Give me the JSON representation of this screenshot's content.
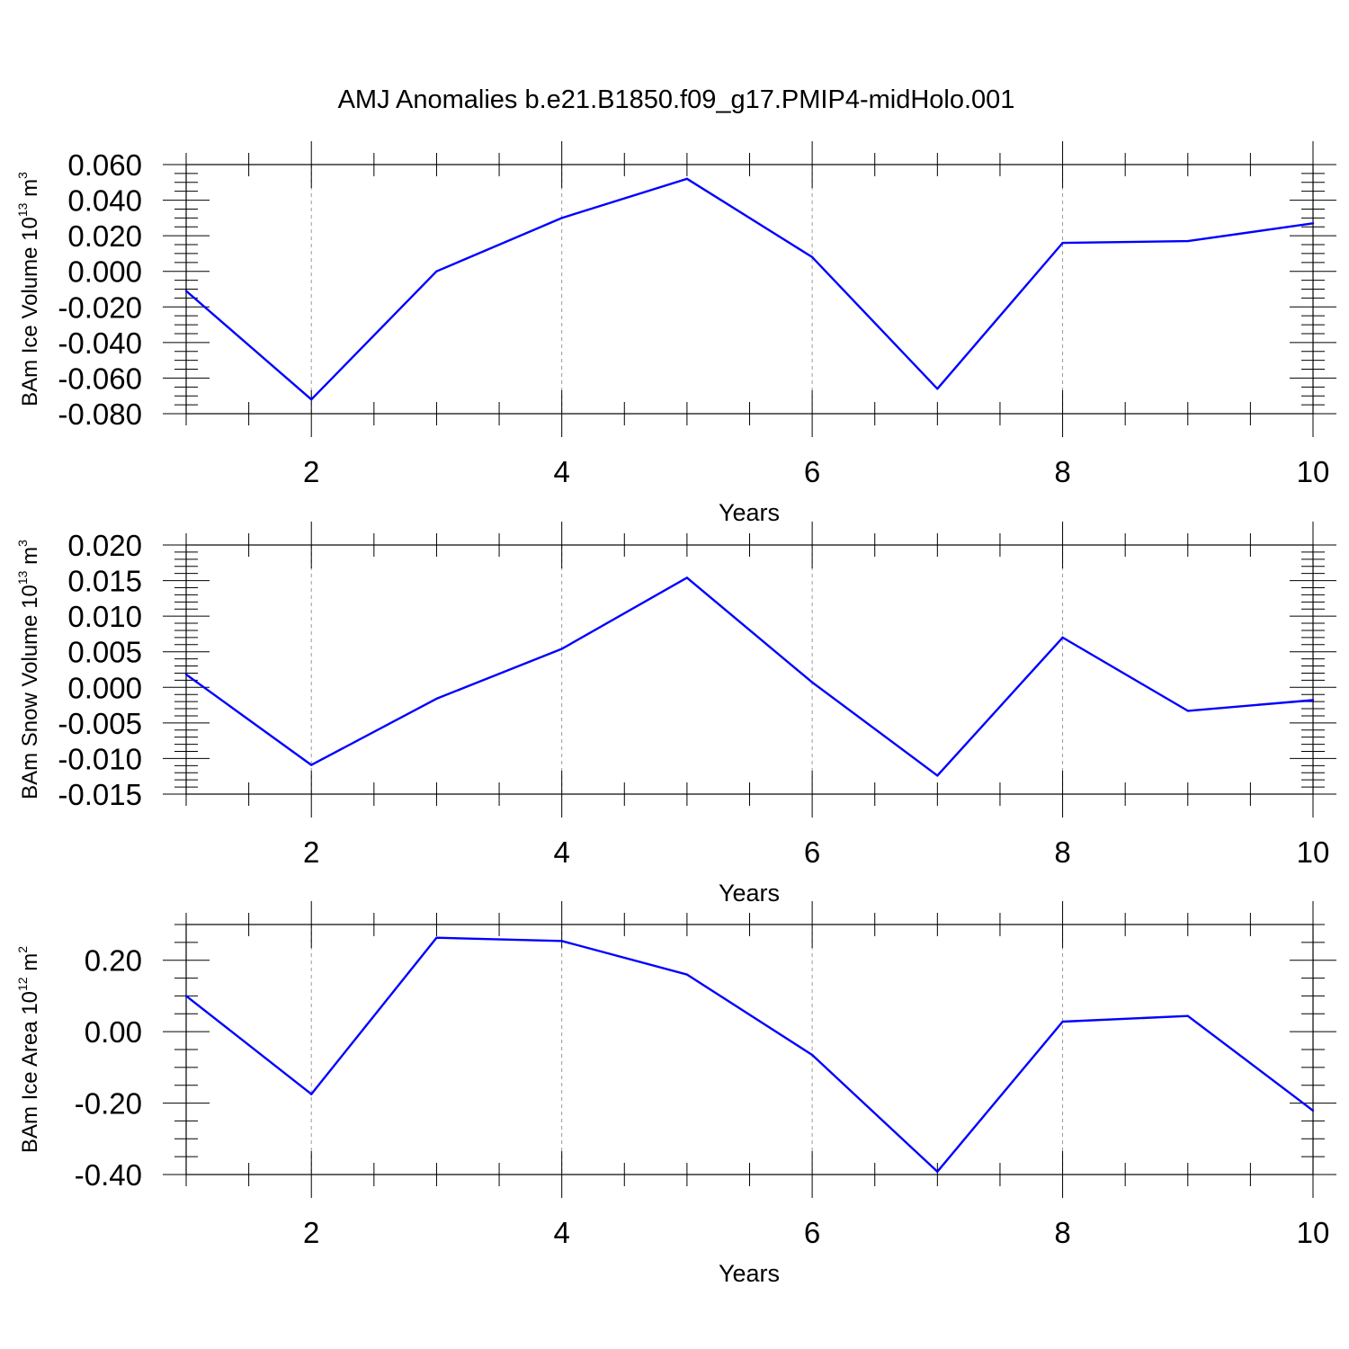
{
  "title": "AMJ Anomalies b.e21.B1850.f09_g17.PMIP4-midHolo.001",
  "chart_data": [
    {
      "type": "line",
      "xlabel": "Years",
      "ylabel": {
        "prefix": "BAm Ice Volume 10",
        "exp": "13",
        "unit": " m",
        "unit_exp": "3"
      },
      "xlim": [
        1,
        10
      ],
      "ylim": [
        -0.08,
        0.06
      ],
      "x_ticks": [
        2,
        4,
        6,
        8,
        10
      ],
      "x_tick_labels": [
        "2",
        "4",
        "6",
        "8",
        "10"
      ],
      "y_ticks": [
        -0.08,
        -0.06,
        -0.04,
        -0.02,
        0.0,
        0.02,
        0.04,
        0.06
      ],
      "y_tick_labels": [
        "-0.080",
        "-0.060",
        "-0.040",
        "-0.020",
        "0.000",
        "0.020",
        "0.040",
        "0.060"
      ],
      "y_minor_step": 0.005,
      "grid": "vertical dashed at major x ticks",
      "color": "#0000ff",
      "x": [
        1,
        2,
        3,
        4,
        5,
        6,
        7,
        8,
        9,
        10
      ],
      "values": [
        -0.011,
        -0.072,
        0.0,
        0.03,
        0.052,
        0.008,
        -0.066,
        0.016,
        0.017,
        0.027
      ]
    },
    {
      "type": "line",
      "xlabel": "Years",
      "ylabel": {
        "prefix": "BAm Snow Volume 10",
        "exp": "13",
        "unit": " m",
        "unit_exp": "3"
      },
      "xlim": [
        1,
        10
      ],
      "ylim": [
        -0.015,
        0.02
      ],
      "x_ticks": [
        2,
        4,
        6,
        8,
        10
      ],
      "x_tick_labels": [
        "2",
        "4",
        "6",
        "8",
        "10"
      ],
      "y_ticks": [
        -0.015,
        -0.01,
        -0.005,
        0.0,
        0.005,
        0.01,
        0.015,
        0.02
      ],
      "y_tick_labels": [
        "-0.015",
        "-0.010",
        "-0.005",
        "0.000",
        "0.005",
        "0.010",
        "0.015",
        "0.020"
      ],
      "y_minor_step": 0.001,
      "grid": "vertical dashed at major x ticks",
      "color": "#0000ff",
      "x": [
        1,
        2,
        3,
        4,
        5,
        6,
        7,
        8,
        9,
        10
      ],
      "values": [
        0.0018,
        -0.0109,
        -0.0016,
        0.0054,
        0.0154,
        0.0007,
        -0.0124,
        0.007,
        -0.0033,
        -0.0018
      ]
    },
    {
      "type": "line",
      "xlabel": "Years",
      "ylabel": {
        "prefix": "BAm Ice Area 10",
        "exp": "12",
        "unit": " m",
        "unit_exp": "2"
      },
      "xlim": [
        1,
        10
      ],
      "ylim": [
        -0.4,
        0.3
      ],
      "x_ticks": [
        2,
        4,
        6,
        8,
        10
      ],
      "x_tick_labels": [
        "2",
        "4",
        "6",
        "8",
        "10"
      ],
      "y_ticks": [
        -0.4,
        -0.2,
        0.0,
        0.2
      ],
      "y_tick_labels": [
        "-0.40",
        "-0.20",
        "0.00",
        "0.20"
      ],
      "y_minor_step": 0.05,
      "grid": "vertical dashed at major x ticks",
      "color": "#0000ff",
      "x": [
        1,
        2,
        3,
        4,
        5,
        6,
        7,
        8,
        9,
        10
      ],
      "values": [
        0.1,
        -0.175,
        0.263,
        0.254,
        0.16,
        -0.065,
        -0.392,
        0.028,
        0.044,
        -0.221
      ]
    }
  ]
}
